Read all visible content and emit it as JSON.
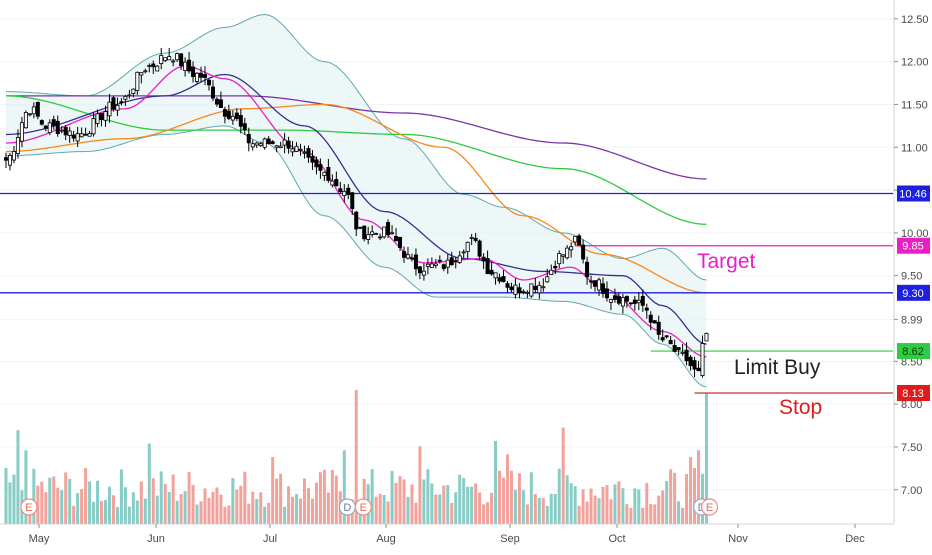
{
  "chart_data": {
    "type": "candlestick",
    "title": "",
    "xlabel": "",
    "ylabel": "",
    "ylim": [
      6.6,
      12.72
    ],
    "y_ticks": [
      12.5,
      12.0,
      11.5,
      11.0,
      10.5,
      10.0,
      9.5,
      8.99,
      8.5,
      8.0,
      7.5,
      7.0
    ],
    "x_ticks": [
      "May",
      "Jun",
      "Jul",
      "Aug",
      "Sep",
      "Oct",
      "Nov",
      "Dec"
    ],
    "price_anchors": [
      {
        "i": 0,
        "p": 10.85
      },
      {
        "i": 6,
        "p": 11.45
      },
      {
        "i": 10,
        "p": 11.25
      },
      {
        "i": 18,
        "p": 11.15
      },
      {
        "i": 28,
        "p": 11.5
      },
      {
        "i": 36,
        "p": 11.95
      },
      {
        "i": 41,
        "p": 12.08
      },
      {
        "i": 48,
        "p": 11.85
      },
      {
        "i": 56,
        "p": 11.4
      },
      {
        "i": 62,
        "p": 11.05
      },
      {
        "i": 70,
        "p": 11.05
      },
      {
        "i": 80,
        "p": 10.7
      },
      {
        "i": 85,
        "p": 10.5
      },
      {
        "i": 89,
        "p": 10.0
      },
      {
        "i": 95,
        "p": 10.0
      },
      {
        "i": 104,
        "p": 9.6
      },
      {
        "i": 110,
        "p": 9.62
      },
      {
        "i": 117,
        "p": 9.9
      },
      {
        "i": 122,
        "p": 9.55
      },
      {
        "i": 128,
        "p": 9.35
      },
      {
        "i": 134,
        "p": 9.4
      },
      {
        "i": 140,
        "p": 9.75
      },
      {
        "i": 143,
        "p": 9.9
      },
      {
        "i": 147,
        "p": 9.45
      },
      {
        "i": 153,
        "p": 9.25
      },
      {
        "i": 160,
        "p": 9.15
      },
      {
        "i": 165,
        "p": 8.75
      },
      {
        "i": 170,
        "p": 8.55
      },
      {
        "i": 174,
        "p": 8.35
      },
      {
        "i": 175,
        "p": 8.65
      },
      {
        "i": 176,
        "p": 8.82
      }
    ],
    "moving_averages": [
      {
        "color": "#7b35a8",
        "anchors": [
          {
            "i": 0,
            "p": 11.6
          },
          {
            "i": 60,
            "p": 11.6
          },
          {
            "i": 100,
            "p": 11.4
          },
          {
            "i": 140,
            "p": 11.05
          },
          {
            "i": 176,
            "p": 10.63
          }
        ]
      },
      {
        "color": "#2ecc40",
        "anchors": [
          {
            "i": 0,
            "p": 11.6
          },
          {
            "i": 40,
            "p": 11.2
          },
          {
            "i": 70,
            "p": 11.2
          },
          {
            "i": 100,
            "p": 11.15
          },
          {
            "i": 140,
            "p": 10.75
          },
          {
            "i": 176,
            "p": 10.1
          }
        ]
      },
      {
        "color": "#f5891f",
        "anchors": [
          {
            "i": 0,
            "p": 10.95
          },
          {
            "i": 30,
            "p": 11.1
          },
          {
            "i": 60,
            "p": 11.45
          },
          {
            "i": 80,
            "p": 11.5
          },
          {
            "i": 110,
            "p": 11.0
          },
          {
            "i": 130,
            "p": 10.2
          },
          {
            "i": 150,
            "p": 9.75
          },
          {
            "i": 176,
            "p": 9.3
          }
        ]
      },
      {
        "color": "#3a2e8f",
        "anchors": [
          {
            "i": 0,
            "p": 11.15
          },
          {
            "i": 40,
            "p": 11.6
          },
          {
            "i": 55,
            "p": 11.85
          },
          {
            "i": 75,
            "p": 11.25
          },
          {
            "i": 95,
            "p": 10.25
          },
          {
            "i": 115,
            "p": 9.7
          },
          {
            "i": 135,
            "p": 9.55
          },
          {
            "i": 155,
            "p": 9.5
          },
          {
            "i": 165,
            "p": 9.15
          },
          {
            "i": 176,
            "p": 8.7
          }
        ]
      },
      {
        "color": "#e91ec7",
        "anchors": [
          {
            "i": 0,
            "p": 11.05
          },
          {
            "i": 30,
            "p": 11.45
          },
          {
            "i": 45,
            "p": 11.95
          },
          {
            "i": 55,
            "p": 11.8
          },
          {
            "i": 75,
            "p": 10.95
          },
          {
            "i": 90,
            "p": 10.15
          },
          {
            "i": 105,
            "p": 9.65
          },
          {
            "i": 120,
            "p": 9.7
          },
          {
            "i": 130,
            "p": 9.45
          },
          {
            "i": 142,
            "p": 9.6
          },
          {
            "i": 150,
            "p": 9.35
          },
          {
            "i": 165,
            "p": 8.85
          },
          {
            "i": 176,
            "p": 8.55
          }
        ]
      }
    ],
    "bollinger_bands": {
      "upper": [
        {
          "i": 0,
          "p": 11.65
        },
        {
          "i": 20,
          "p": 11.6
        },
        {
          "i": 40,
          "p": 12.1
        },
        {
          "i": 55,
          "p": 12.4
        },
        {
          "i": 65,
          "p": 12.55
        },
        {
          "i": 80,
          "p": 12.0
        },
        {
          "i": 100,
          "p": 11.1
        },
        {
          "i": 115,
          "p": 10.45
        },
        {
          "i": 125,
          "p": 10.3
        },
        {
          "i": 140,
          "p": 10.0
        },
        {
          "i": 155,
          "p": 9.7
        },
        {
          "i": 165,
          "p": 9.82
        },
        {
          "i": 176,
          "p": 9.45
        }
      ],
      "lower": [
        {
          "i": 0,
          "p": 10.9
        },
        {
          "i": 20,
          "p": 10.95
        },
        {
          "i": 40,
          "p": 11.15
        },
        {
          "i": 55,
          "p": 11.25
        },
        {
          "i": 65,
          "p": 11.05
        },
        {
          "i": 80,
          "p": 10.2
        },
        {
          "i": 95,
          "p": 9.6
        },
        {
          "i": 108,
          "p": 9.25
        },
        {
          "i": 125,
          "p": 9.25
        },
        {
          "i": 140,
          "p": 9.2
        },
        {
          "i": 155,
          "p": 9.05
        },
        {
          "i": 165,
          "p": 8.7
        },
        {
          "i": 176,
          "p": 8.2
        }
      ]
    },
    "horizontal_levels": [
      {
        "name": "resistance",
        "price": 10.46,
        "label": "10.46",
        "color": "#1f1fe0",
        "extent": "full"
      },
      {
        "name": "support",
        "price": 9.3,
        "label": "9.30",
        "color": "#1f1fe0",
        "extent": "full"
      },
      {
        "name": "target",
        "price": 9.85,
        "label": "9.85",
        "color": "#e91ec7",
        "extent": "partial",
        "from_index": 143
      },
      {
        "name": "limit-buy",
        "price": 8.62,
        "label": "8.62",
        "color": "#2ecc40",
        "extent": "partial",
        "from_index": 162
      },
      {
        "name": "stop",
        "price": 8.13,
        "label": "8.13",
        "color": "#e01b1b",
        "extent": "partial",
        "from_index": 173
      }
    ],
    "annotations": [
      {
        "name": "target",
        "text": "Target",
        "color": "#e91ec7"
      },
      {
        "name": "limit-buy",
        "text": "Limit Buy",
        "color": "#222222"
      },
      {
        "name": "stop",
        "text": "Stop",
        "color": "#e01b1b"
      }
    ],
    "volume": {
      "color_up": "#88ccc6",
      "color_down": "#f2a29a",
      "highlights": [
        {
          "i": 88,
          "h": 1.0
        },
        {
          "i": 85,
          "h": 0.55
        },
        {
          "i": 140,
          "h": 0.72
        },
        {
          "i": 123,
          "h": 0.62
        },
        {
          "i": 126,
          "h": 0.52
        },
        {
          "i": 104,
          "h": 0.58
        },
        {
          "i": 176,
          "h": 0.98
        },
        {
          "i": 172,
          "h": 0.5
        },
        {
          "i": 174,
          "h": 0.55
        },
        {
          "i": 3,
          "h": 0.7
        },
        {
          "i": 5,
          "h": 0.55
        },
        {
          "i": 36,
          "h": 0.6
        },
        {
          "i": 67,
          "h": 0.5
        }
      ]
    },
    "event_markers": [
      {
        "i": 3,
        "kind": "E"
      },
      {
        "i": 83,
        "kind": "D"
      },
      {
        "i": 87,
        "kind": "E"
      },
      {
        "i": 172,
        "kind": "D"
      },
      {
        "i": 174,
        "kind": "E"
      }
    ]
  }
}
